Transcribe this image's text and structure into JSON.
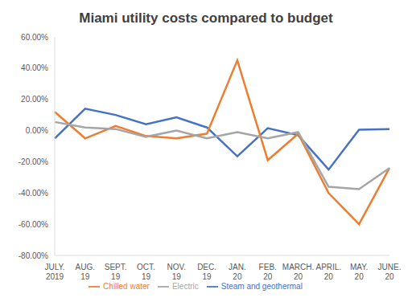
{
  "chart_data": {
    "type": "line",
    "title": "Miami utility costs compared to budget",
    "categories": [
      "JULY. 2019",
      "AUG. 19",
      "SEPT. 19",
      "OCT. 19",
      "NOV. 19",
      "DEC. 19",
      "JAN. 20",
      "FEB. 20",
      "MARCH. 20",
      "APRIL. 20",
      "MAY. 20",
      "JUNE. 20"
    ],
    "series": [
      {
        "name": "Steam and geothermal",
        "color": "#4472c4",
        "values": [
          -5,
          14,
          10,
          4,
          8.5,
          2,
          -16.5,
          1.5,
          -3,
          -25,
          0.5,
          1
        ]
      },
      {
        "name": "Chilled water",
        "color": "#ed7d31",
        "values": [
          12,
          -5,
          3,
          -3.5,
          -5,
          -2,
          45,
          -19,
          -2,
          -40,
          -60,
          -24
        ]
      },
      {
        "name": "Electric",
        "color": "#a5a5a5",
        "values": [
          5.5,
          2,
          1,
          -4,
          0,
          -5,
          -1,
          -5,
          -1,
          -36,
          -37.5,
          -24
        ]
      }
    ],
    "ylim": [
      -80,
      60
    ],
    "yticks": [
      {
        "value": -80,
        "label": "-80.00%"
      },
      {
        "value": -60,
        "label": "-60.00%"
      },
      {
        "value": -40,
        "label": "-40.00%"
      },
      {
        "value": -20,
        "label": "-20.00%"
      },
      {
        "value": 0,
        "label": "0.00%"
      },
      {
        "value": 20,
        "label": "20.00%"
      },
      {
        "value": 40,
        "label": "40.00%"
      },
      {
        "value": 60,
        "label": "60.00%"
      }
    ],
    "grid": false,
    "legend": "bottom"
  }
}
